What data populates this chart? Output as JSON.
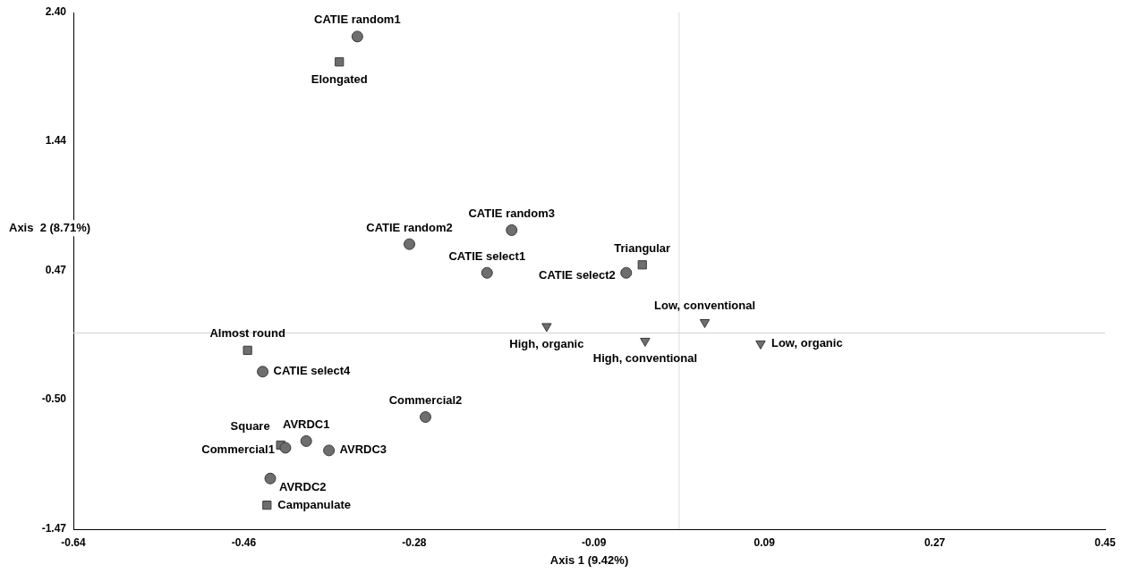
{
  "chart_data": {
    "type": "scatter",
    "xlabel": "Axis 1 (9.42%)",
    "ylabel": "Axis  2 (8.71%)",
    "xlim": [
      -0.64,
      0.45
    ],
    "xticks": [
      -0.64,
      -0.46,
      -0.28,
      -0.09,
      0.09,
      0.27,
      0.45
    ],
    "ylim": [
      -1.47,
      2.4
    ],
    "yticks": [
      {
        "value": -1.47,
        "label": "-1.47"
      },
      {
        "value": -0.5,
        "label": "-0.50"
      },
      0.47,
      1.44,
      {
        "value": 2.4,
        "label": "2.40"
      }
    ],
    "grid": false,
    "legend": false,
    "series": [
      {
        "color": "#6e6e6e",
        "marker": "circle",
        "x": [
          -0.34,
          -0.285,
          -0.177,
          -0.203,
          -0.056,
          -0.44,
          -0.268,
          -0.394,
          -0.416,
          -0.37,
          -0.432
        ],
        "values": [
          2.22,
          0.665,
          0.77,
          0.45,
          0.45,
          -0.29,
          -0.63,
          -0.81,
          -0.86,
          -0.88,
          -1.09
        ]
      },
      {
        "color": "#6e6e6e",
        "marker": "square",
        "x": [
          -0.359,
          -0.039,
          -0.456,
          -0.421,
          -0.4355
        ],
        "values": [
          2.03,
          0.51,
          -0.13,
          -0.84,
          -1.29
        ]
      },
      {
        "color": "#6e6e6e",
        "marker": "triangle",
        "x": [
          0.027,
          -0.14,
          -0.036,
          0.086
        ],
        "values": [
          0.08,
          0.05,
          -0.06,
          -0.08
        ]
      }
    ],
    "ref_lines": [
      {
        "axis": "x",
        "value": 0,
        "color": "#dcdcdc"
      },
      {
        "axis": "y",
        "value": 0,
        "color": "#d2d2d2"
      }
    ],
    "annotations": [
      {
        "text": "CATIE random1",
        "x": -0.34,
        "y": 2.22
      },
      {
        "text": "Elongated",
        "x": -0.359,
        "y": 2.03
      },
      {
        "text": "CATIE random2",
        "x": -0.285,
        "y": 0.665
      },
      {
        "text": "CATIE random3",
        "x": -0.177,
        "y": 0.77
      },
      {
        "text": "CATIE select1",
        "x": -0.203,
        "y": 0.45
      },
      {
        "text": "CATIE select2",
        "x": -0.056,
        "y": 0.45
      },
      {
        "text": "Triangular",
        "x": -0.039,
        "y": 0.51
      },
      {
        "text": "Low, conventional",
        "x": 0.027,
        "y": 0.08
      },
      {
        "text": "High, organic",
        "x": -0.14,
        "y": 0.05
      },
      {
        "text": "High, conventional",
        "x": -0.036,
        "y": -0.06
      },
      {
        "text": "Low, organic",
        "x": 0.086,
        "y": -0.08
      },
      {
        "text": "Almost round",
        "x": -0.456,
        "y": -0.13
      },
      {
        "text": "CATIE select4",
        "x": -0.44,
        "y": -0.29
      },
      {
        "text": "Commercial2",
        "x": -0.268,
        "y": -0.63
      },
      {
        "text": "AVRDC1",
        "x": -0.394,
        "y": -0.81
      },
      {
        "text": "Square",
        "x": -0.421,
        "y": -0.84
      },
      {
        "text": "Commercial1",
        "x": -0.416,
        "y": -0.86
      },
      {
        "text": "AVRDC3",
        "x": -0.37,
        "y": -0.88
      },
      {
        "text": "AVRDC2",
        "x": -0.432,
        "y": -1.09
      },
      {
        "text": "Campanulate",
        "x": -0.4355,
        "y": -1.29
      }
    ]
  }
}
